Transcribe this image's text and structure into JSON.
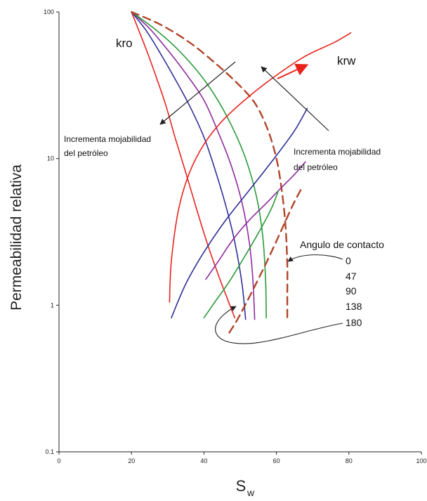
{
  "chart_data": {
    "type": "line",
    "xlabel": "Sw",
    "ylabel": "Permeabilidad relativa",
    "xlim": [
      0,
      100
    ],
    "ylim": [
      0.1,
      100
    ],
    "y_scale": "log",
    "x_ticks": [
      "0",
      "20",
      "40",
      "60",
      "80",
      "100"
    ],
    "y_ticks": [
      "0.1",
      "1",
      "10",
      "100"
    ],
    "curve_labels": {
      "kro": "kro",
      "krw": "krw"
    },
    "annotations": {
      "oil_wet_left": [
        "Incrementa mojabilidad",
        "del petróleo"
      ],
      "oil_wet_right": [
        "Incrementa mojabilidad",
        "del petróleo"
      ]
    },
    "legend": {
      "title": "Angulo de contacto",
      "entries": [
        "0",
        "47",
        "90",
        "138",
        "180"
      ]
    },
    "colors": [
      "#e8231c",
      "#2e2f98",
      "#8e2a9e",
      "#2a9a3a",
      "#b0442a"
    ],
    "series": [
      {
        "group": "kro",
        "angle": "0",
        "dashed": false,
        "x": [
          20,
          22,
          24.5,
          27,
          29.5,
          32,
          35,
          38,
          41,
          44,
          46.5,
          48.5
        ],
        "y": [
          100,
          75,
          52,
          35,
          23,
          14,
          8,
          4.5,
          2.6,
          1.6,
          1.1,
          0.82
        ]
      },
      {
        "group": "kro",
        "angle": "47",
        "dashed": false,
        "x": [
          20,
          24,
          28,
          32,
          36,
          40,
          43,
          46,
          48.5,
          50.5,
          51.5
        ],
        "y": [
          100,
          75,
          52,
          35,
          23,
          14,
          8.5,
          4.8,
          2.7,
          1.4,
          0.8
        ]
      },
      {
        "group": "kro",
        "angle": "90",
        "dashed": false,
        "x": [
          20,
          25,
          30,
          35,
          40,
          44,
          47.5,
          50.5,
          52.5,
          53.5,
          54
        ],
        "y": [
          100,
          77,
          55,
          38,
          25,
          15,
          9,
          5,
          2.7,
          1.5,
          0.8
        ]
      },
      {
        "group": "kro",
        "angle": "138",
        "dashed": false,
        "x": [
          20,
          26,
          32,
          38,
          43,
          47.5,
          51.5,
          54.5,
          56.2,
          57,
          57.2
        ],
        "y": [
          100,
          78,
          58,
          40,
          27,
          17,
          10,
          5.5,
          3,
          1.5,
          0.82
        ]
      },
      {
        "group": "kro",
        "angle": "180",
        "dashed": true,
        "x": [
          20,
          28,
          36,
          43,
          49,
          54,
          57.5,
          60,
          61.5,
          62.5,
          63,
          63,
          63
        ],
        "y": [
          100,
          82,
          62,
          45,
          33,
          24,
          16,
          10,
          6,
          3.5,
          1.9,
          1.2,
          0.8
        ]
      },
      {
        "group": "krw",
        "angle": "0",
        "dashed": false,
        "x": [
          30.5,
          31,
          33,
          36,
          40,
          45,
          52,
          60,
          68,
          76,
          80.5
        ],
        "y": [
          1.05,
          2,
          4.5,
          8,
          12.5,
          18,
          26,
          37,
          50,
          62,
          72
        ]
      },
      {
        "group": "krw",
        "angle": "47",
        "dashed": false,
        "x": [
          31,
          35,
          40,
          46,
          53,
          60,
          65,
          68.5
        ],
        "y": [
          0.82,
          1.4,
          2.3,
          3.8,
          6.3,
          10.5,
          15.5,
          22
        ]
      },
      {
        "group": "krw",
        "angle": "90",
        "dashed": false,
        "x": [
          40.5,
          44,
          48,
          52.5,
          57,
          61,
          65,
          68
        ],
        "y": [
          1.5,
          2,
          2.8,
          3.8,
          4.9,
          6.2,
          7.8,
          9.5
        ]
      },
      {
        "group": "krw",
        "angle": "138",
        "dashed": false,
        "x": [
          40,
          43,
          47,
          51,
          55,
          58.5,
          60.5
        ],
        "y": [
          0.82,
          1.05,
          1.45,
          2.1,
          3.1,
          4.5,
          6
        ]
      },
      {
        "group": "krw",
        "angle": "180",
        "dashed": true,
        "x": [
          47,
          49.5,
          53,
          57,
          61,
          64.5,
          67
        ],
        "y": [
          0.65,
          0.82,
          1.2,
          1.9,
          3.1,
          4.8,
          6.3
        ]
      }
    ]
  }
}
